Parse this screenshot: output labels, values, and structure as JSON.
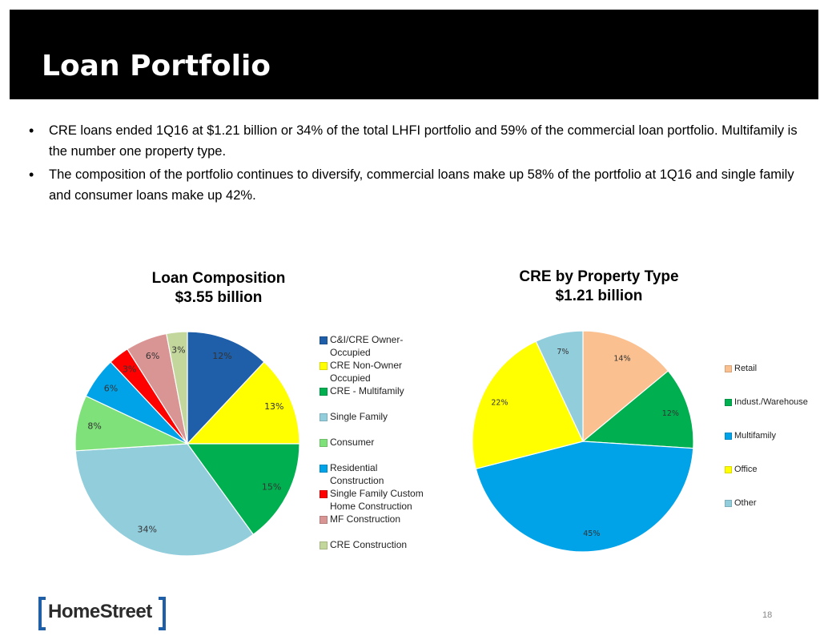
{
  "slide": {
    "title": "Loan Portfolio",
    "page_number": "18",
    "logo": {
      "prefix": "Home",
      "suffix": "Street",
      "accent_color": "#1f5fa8"
    }
  },
  "bullets": [
    {
      "icon": "bullet-icon",
      "glyph": "•",
      "text": "CRE loans ended 1Q16 at $1.21 billion or 34% of the total LHFI portfolio and 59% of the commercial loan portfolio. Multifamily is the number one property type."
    },
    {
      "icon": "bullet-icon",
      "glyph": "•",
      "text": "The composition of the portfolio continues to diversify, commercial loans make up 58% of the portfolio at 1Q16 and single family and consumer loans make up 42%."
    }
  ],
  "chart_data": [
    {
      "type": "pie",
      "title": "Loan Composition",
      "subtitle": "$3.55 billion",
      "start": "12 o'clock, clockwise",
      "legend_position": "right",
      "slices": [
        {
          "label": "C&I/CRE Owner-Occupied",
          "legend_lines": [
            "C&I/CRE Owner-",
            "Occupied"
          ],
          "value": 12,
          "display": "12%",
          "color": "#1f5ea8"
        },
        {
          "label": "CRE Non-Owner Occupied",
          "legend_lines": [
            "CRE Non-Owner",
            "Occupied"
          ],
          "value": 13,
          "display": "13%",
          "color": "#ffff00"
        },
        {
          "label": "CRE - Multifamily",
          "legend_lines": [
            "CRE - Multifamily"
          ],
          "value": 15,
          "display": "15%",
          "color": "#00b050"
        },
        {
          "label": "Single Family",
          "legend_lines": [
            "Single Family"
          ],
          "value": 34,
          "display": "34%",
          "color": "#92cddc"
        },
        {
          "label": "Consumer",
          "legend_lines": [
            "Consumer"
          ],
          "value": 8,
          "display": "8%",
          "color": "#7fe17a"
        },
        {
          "label": "Residential Construction",
          "legend_lines": [
            "Residential",
            "Construction"
          ],
          "value": 6,
          "display": "6%",
          "color": "#00a2e8"
        },
        {
          "label": "Single Family Custom Home Construction",
          "legend_lines": [
            "Single Family Custom",
            "Home Construction"
          ],
          "value": 3,
          "display": "3%",
          "color": "#ff0000"
        },
        {
          "label": "MF Construction",
          "legend_lines": [
            "MF Construction"
          ],
          "value": 6,
          "display": "6%",
          "color": "#d99594"
        },
        {
          "label": "CRE Construction",
          "legend_lines": [
            "CRE Construction"
          ],
          "value": 3,
          "display": "3%",
          "color": "#c3d69b"
        }
      ]
    },
    {
      "type": "pie",
      "title": "CRE by Property Type",
      "subtitle": "$1.21 billion",
      "start": "12 o'clock, clockwise",
      "legend_position": "right",
      "slices": [
        {
          "label": "Retail",
          "legend_lines": [
            "Retail"
          ],
          "value": 14,
          "display": "14%",
          "color": "#fac090"
        },
        {
          "label": "Indust./Warehouse",
          "legend_lines": [
            "Indust./Warehouse"
          ],
          "value": 12,
          "display": "12%",
          "color": "#00b050"
        },
        {
          "label": "Multifamily",
          "legend_lines": [
            "Multifamily"
          ],
          "value": 45,
          "display": "45%",
          "color": "#00a2e8"
        },
        {
          "label": "Office",
          "legend_lines": [
            "Office"
          ],
          "value": 22,
          "display": "22%",
          "color": "#ffff00"
        },
        {
          "label": "Other",
          "legend_lines": [
            "Other"
          ],
          "value": 7,
          "display": "7%",
          "color": "#92cddc"
        }
      ]
    }
  ]
}
